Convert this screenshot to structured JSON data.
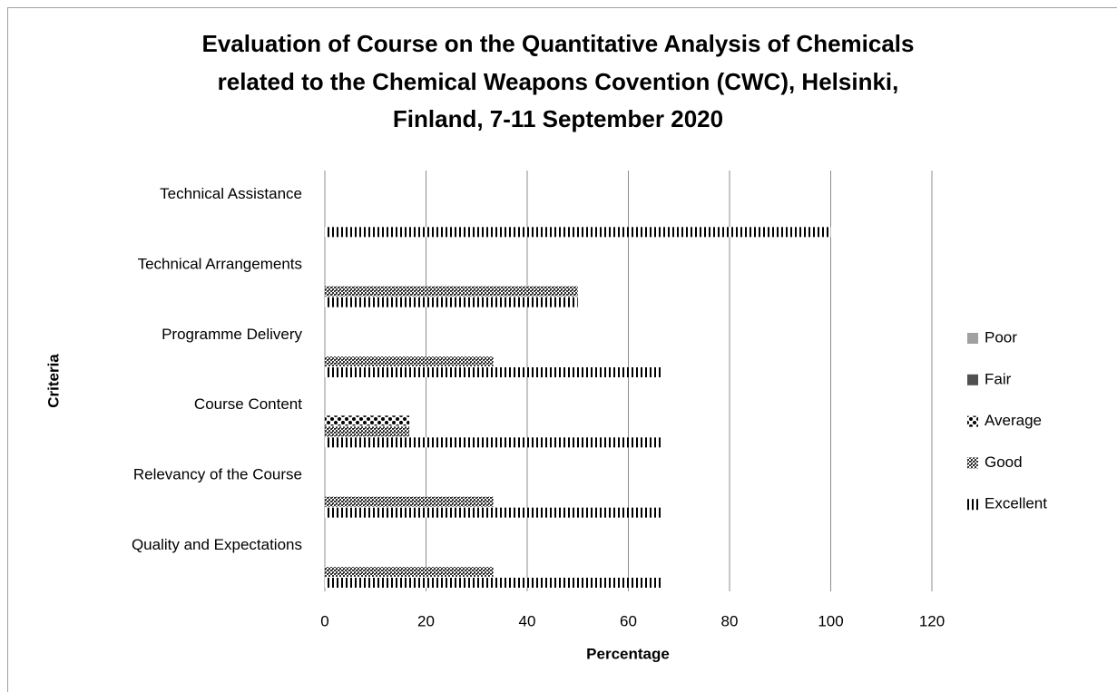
{
  "chart_data": {
    "type": "bar",
    "orientation": "horizontal",
    "title": [
      "Evaluation of Course on the Quantitative Analysis of Chemicals",
      "related to the Chemical Weapons Covention (CWC), Helsinki,",
      "Finland, 7-11 September 2020"
    ],
    "x_label": "Percentage",
    "y_label": "Criteria",
    "categories": [
      "Technical Assistance",
      "Technical Arrangements",
      "Programme Delivery",
      "Course Content",
      "Relevancy of the Course",
      "Quality and Expectations"
    ],
    "series": [
      {
        "name": "Poor",
        "color": "#a0a0a0",
        "pattern": "solid",
        "values": [
          0,
          0,
          0,
          0,
          0,
          0
        ]
      },
      {
        "name": "Fair",
        "color": "#505050",
        "pattern": "solid",
        "values": [
          0,
          0,
          0,
          0,
          0,
          0
        ]
      },
      {
        "name": "Average",
        "color": "#000000",
        "pattern": "dots",
        "values": [
          0,
          0,
          0,
          16.7,
          0,
          0
        ]
      },
      {
        "name": "Good",
        "color": "#303030",
        "pattern": "crosshatch",
        "values": [
          0,
          50,
          33.3,
          16.7,
          33.3,
          33.3
        ]
      },
      {
        "name": "Excellent",
        "color": "#000000",
        "pattern": "vertical-stripes",
        "values": [
          100,
          50,
          66.7,
          66.7,
          66.7,
          66.7
        ]
      }
    ],
    "xlim": [
      0,
      120
    ],
    "xticks": [
      0,
      20,
      40,
      60,
      80,
      100,
      120
    ],
    "grid": true,
    "legend": "right"
  }
}
